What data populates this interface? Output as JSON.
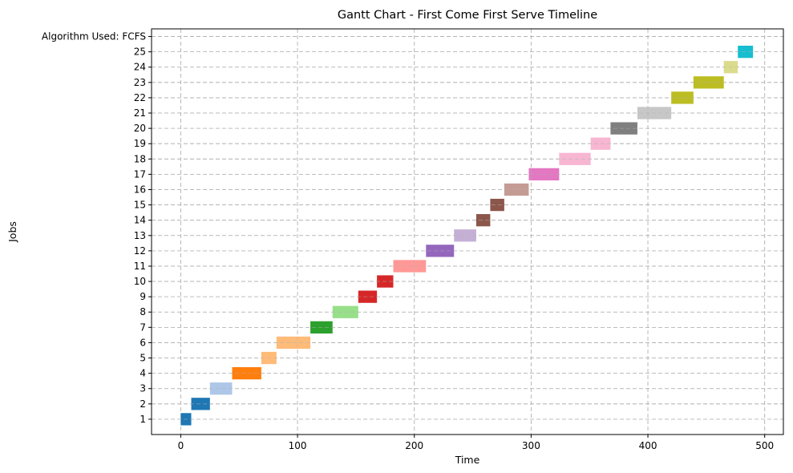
{
  "chart_data": {
    "type": "gantt",
    "title": "Gantt Chart - First Come First Serve Timeline",
    "xlabel": "Time",
    "ylabel": "Jobs",
    "xlim": [
      -25,
      516
    ],
    "xticks": [
      0,
      100,
      200,
      300,
      400,
      500
    ],
    "ylim": [
      0,
      26.5
    ],
    "grid": true,
    "y_categories": [
      "1",
      "2",
      "3",
      "4",
      "5",
      "6",
      "7",
      "8",
      "9",
      "10",
      "11",
      "12",
      "13",
      "14",
      "15",
      "16",
      "17",
      "18",
      "19",
      "20",
      "21",
      "22",
      "23",
      "24",
      "25",
      "Algorithm Used: FCFS"
    ],
    "tasks": [
      {
        "job": "1",
        "start": 0,
        "end": 9,
        "color": "#1f77b4"
      },
      {
        "job": "2",
        "start": 9,
        "end": 25,
        "color": "#1f77b4"
      },
      {
        "job": "3",
        "start": 25,
        "end": 44,
        "color": "#aec7e8"
      },
      {
        "job": "4",
        "start": 44,
        "end": 69,
        "color": "#ff7f0e"
      },
      {
        "job": "5",
        "start": 69,
        "end": 82,
        "color": "#ffbb78"
      },
      {
        "job": "6",
        "start": 82,
        "end": 111,
        "color": "#ffbb78"
      },
      {
        "job": "7",
        "start": 111,
        "end": 130,
        "color": "#2ca02c"
      },
      {
        "job": "8",
        "start": 130,
        "end": 152,
        "color": "#98df8a"
      },
      {
        "job": "9",
        "start": 152,
        "end": 168,
        "color": "#d62728"
      },
      {
        "job": "10",
        "start": 168,
        "end": 182,
        "color": "#d62728"
      },
      {
        "job": "11",
        "start": 182,
        "end": 210,
        "color": "#ff9896"
      },
      {
        "job": "12",
        "start": 210,
        "end": 234,
        "color": "#9467bd"
      },
      {
        "job": "13",
        "start": 234,
        "end": 253,
        "color": "#c5b0d5"
      },
      {
        "job": "14",
        "start": 253,
        "end": 265,
        "color": "#8c564b"
      },
      {
        "job": "15",
        "start": 265,
        "end": 277,
        "color": "#8c564b"
      },
      {
        "job": "16",
        "start": 277,
        "end": 298,
        "color": "#c49c94"
      },
      {
        "job": "17",
        "start": 298,
        "end": 324,
        "color": "#e377c2"
      },
      {
        "job": "18",
        "start": 324,
        "end": 351,
        "color": "#f7b6d2"
      },
      {
        "job": "19",
        "start": 351,
        "end": 368,
        "color": "#f7b6d2"
      },
      {
        "job": "20",
        "start": 368,
        "end": 391,
        "color": "#7f7f7f"
      },
      {
        "job": "21",
        "start": 391,
        "end": 420,
        "color": "#c7c7c7"
      },
      {
        "job": "22",
        "start": 420,
        "end": 439,
        "color": "#bcbd22"
      },
      {
        "job": "23",
        "start": 439,
        "end": 465,
        "color": "#bcbd22"
      },
      {
        "job": "24",
        "start": 465,
        "end": 477,
        "color": "#dbdb8d"
      },
      {
        "job": "25",
        "start": 477,
        "end": 490,
        "color": "#17becf"
      }
    ]
  }
}
